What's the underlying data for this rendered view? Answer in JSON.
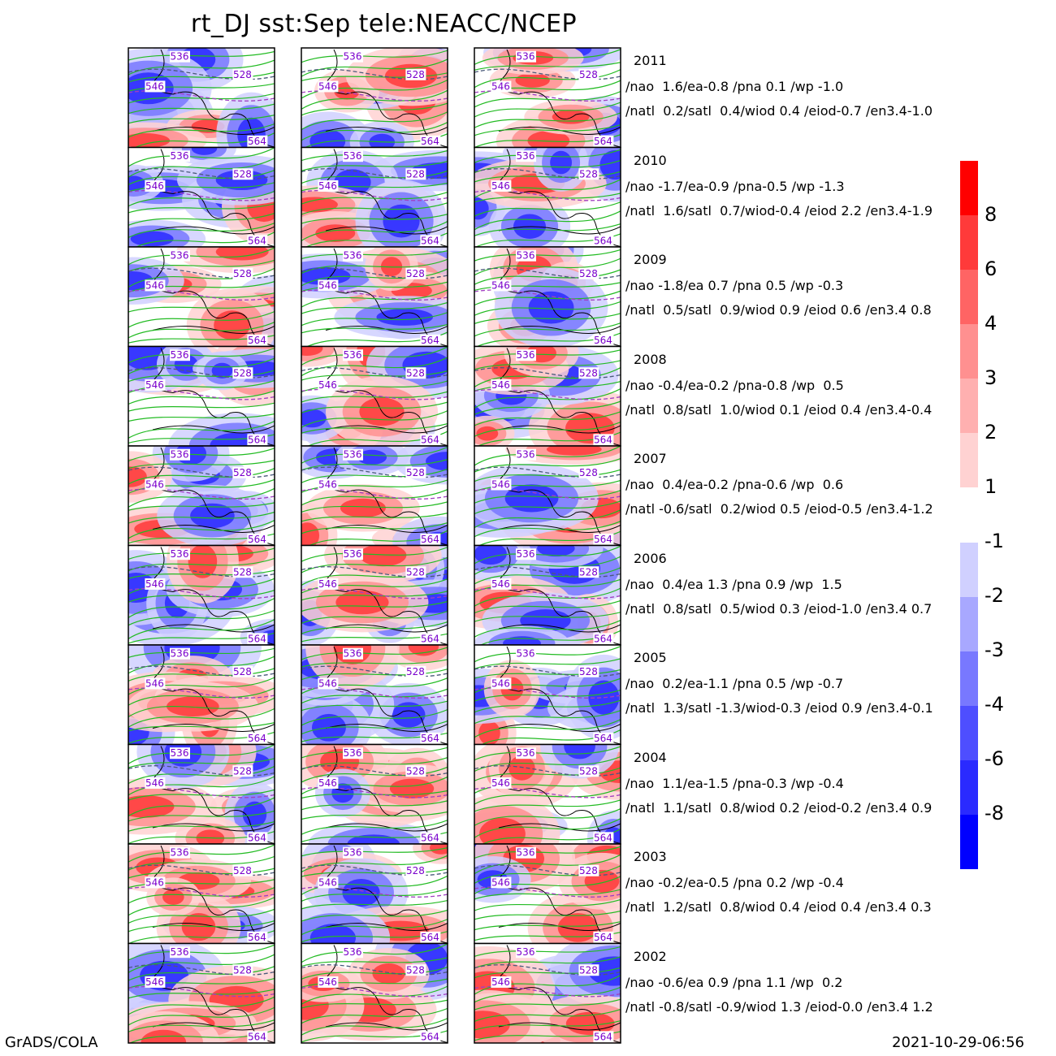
{
  "title": "rt_DJ  sst:Sep  tele:NEACC/NCEP",
  "columns": 3,
  "contour_labels": [
    "536",
    "528",
    "546",
    "564"
  ],
  "colors": {
    "shading_positive": [
      "#ffd2d2",
      "#ffb0b0",
      "#ff9090",
      "#ff6464",
      "#ff3a3a",
      "#ff0000"
    ],
    "shading_negative": [
      "#d0d0ff",
      "#a8a8ff",
      "#7878ff",
      "#4e4eff",
      "#2a2aff",
      "#0000ff"
    ],
    "contour_green": "#22bb22",
    "contour_dashed_dark": "#4a5a7a",
    "contour_dashed_purple": "#a040c0",
    "contour_label": "#7a00cc",
    "coastline": "#000000"
  },
  "years": [
    {
      "year": "2011",
      "line1": "/nao  1.6/ea-0.8 /pna 0.1 /wp -1.0",
      "line2": "/natl  0.2/satl  0.4/wiod 0.4 /eiod-0.7 /en3.4-1.0"
    },
    {
      "year": "2010",
      "line1": "/nao -1.7/ea-0.9 /pna-0.5 /wp -1.3",
      "line2": "/natl  1.6/satl  0.7/wiod-0.4 /eiod 2.2 /en3.4-1.9"
    },
    {
      "year": "2009",
      "line1": "/nao -1.8/ea 0.7 /pna 0.5 /wp -0.3",
      "line2": "/natl  0.5/satl  0.9/wiod 0.9 /eiod 0.6 /en3.4 0.8"
    },
    {
      "year": "2008",
      "line1": "/nao -0.4/ea-0.2 /pna-0.8 /wp  0.5",
      "line2": "/natl  0.8/satl  1.0/wiod 0.1 /eiod 0.4 /en3.4-0.4"
    },
    {
      "year": "2007",
      "line1": "/nao  0.4/ea-0.2 /pna-0.6 /wp  0.6",
      "line2": "/natl -0.6/satl  0.2/wiod 0.5 /eiod-0.5 /en3.4-1.2"
    },
    {
      "year": "2006",
      "line1": "/nao  0.4/ea 1.3 /pna 0.9 /wp  1.5",
      "line2": "/natl  0.8/satl  0.5/wiod 0.3 /eiod-1.0 /en3.4 0.7"
    },
    {
      "year": "2005",
      "line1": "/nao  0.2/ea-1.1 /pna 0.5 /wp -0.7",
      "line2": "/natl  1.3/satl -1.3/wiod-0.3 /eiod 0.9 /en3.4-0.1"
    },
    {
      "year": "2004",
      "line1": "/nao  1.1/ea-1.5 /pna-0.3 /wp -0.4",
      "line2": "/natl  1.1/satl  0.8/wiod 0.2 /eiod-0.2 /en3.4 0.9"
    },
    {
      "year": "2003",
      "line1": "/nao -0.2/ea-0.5 /pna 0.2 /wp -0.4",
      "line2": "/natl  1.2/satl  0.8/wiod 0.4 /eiod 0.4 /en3.4 0.3"
    },
    {
      "year": "2002",
      "line1": "/nao -0.6/ea 0.9 /pna 1.1 /wp  0.2",
      "line2": "/natl -0.8/satl -0.9/wiod 1.3 /eiod-0.0 /en3.4 1.2"
    }
  ],
  "colorbar": {
    "positive_labels": [
      "8",
      "6",
      "4",
      "3",
      "2",
      "1"
    ],
    "negative_labels": [
      "-1",
      "-2",
      "-3",
      "-4",
      "-6",
      "-8"
    ]
  },
  "footer_left": "GrADS/COLA",
  "footer_right": "2021-10-29-06:56"
}
